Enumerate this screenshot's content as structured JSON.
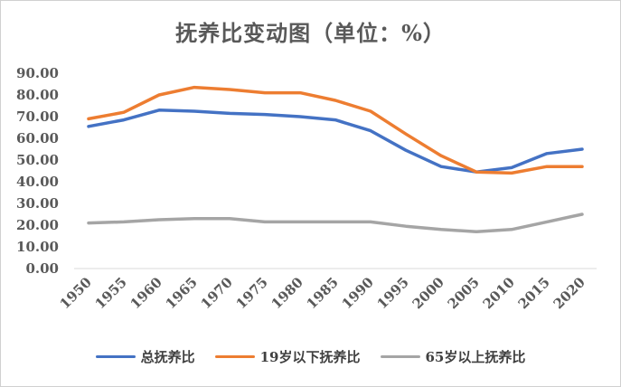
{
  "chart_data": {
    "type": "line",
    "title": "抚养比变动图（单位：%）",
    "x": [
      "1950",
      "1955",
      "1960",
      "1965",
      "1970",
      "1975",
      "1980",
      "1985",
      "1990",
      "1995",
      "2000",
      "2005",
      "2010",
      "2015",
      "2020"
    ],
    "yticks": [
      "0.00",
      "10.00",
      "20.00",
      "30.00",
      "40.00",
      "50.00",
      "60.00",
      "70.00",
      "80.00",
      "90.00"
    ],
    "ylim": [
      0,
      90
    ],
    "grid": false,
    "legend_position": "bottom",
    "series": [
      {
        "name": "总抚养比",
        "color": "#4472C4",
        "values": [
          65.5,
          68.5,
          73.0,
          72.5,
          71.5,
          71.0,
          70.0,
          68.5,
          63.5,
          54.5,
          47.0,
          44.5,
          46.5,
          53.0,
          55.0
        ]
      },
      {
        "name": "19岁以下抚养比",
        "color": "#ED7D31",
        "values": [
          69.0,
          72.0,
          80.0,
          83.5,
          82.5,
          81.0,
          81.0,
          77.5,
          72.5,
          62.0,
          52.0,
          44.5,
          44.0,
          47.0,
          47.0
        ]
      },
      {
        "name": "65岁以上抚养比",
        "color": "#A5A5A5",
        "values": [
          21.0,
          21.5,
          22.5,
          23.0,
          23.0,
          21.5,
          21.5,
          21.5,
          21.5,
          19.5,
          18.0,
          17.0,
          18.0,
          21.5,
          25.0
        ]
      }
    ]
  }
}
